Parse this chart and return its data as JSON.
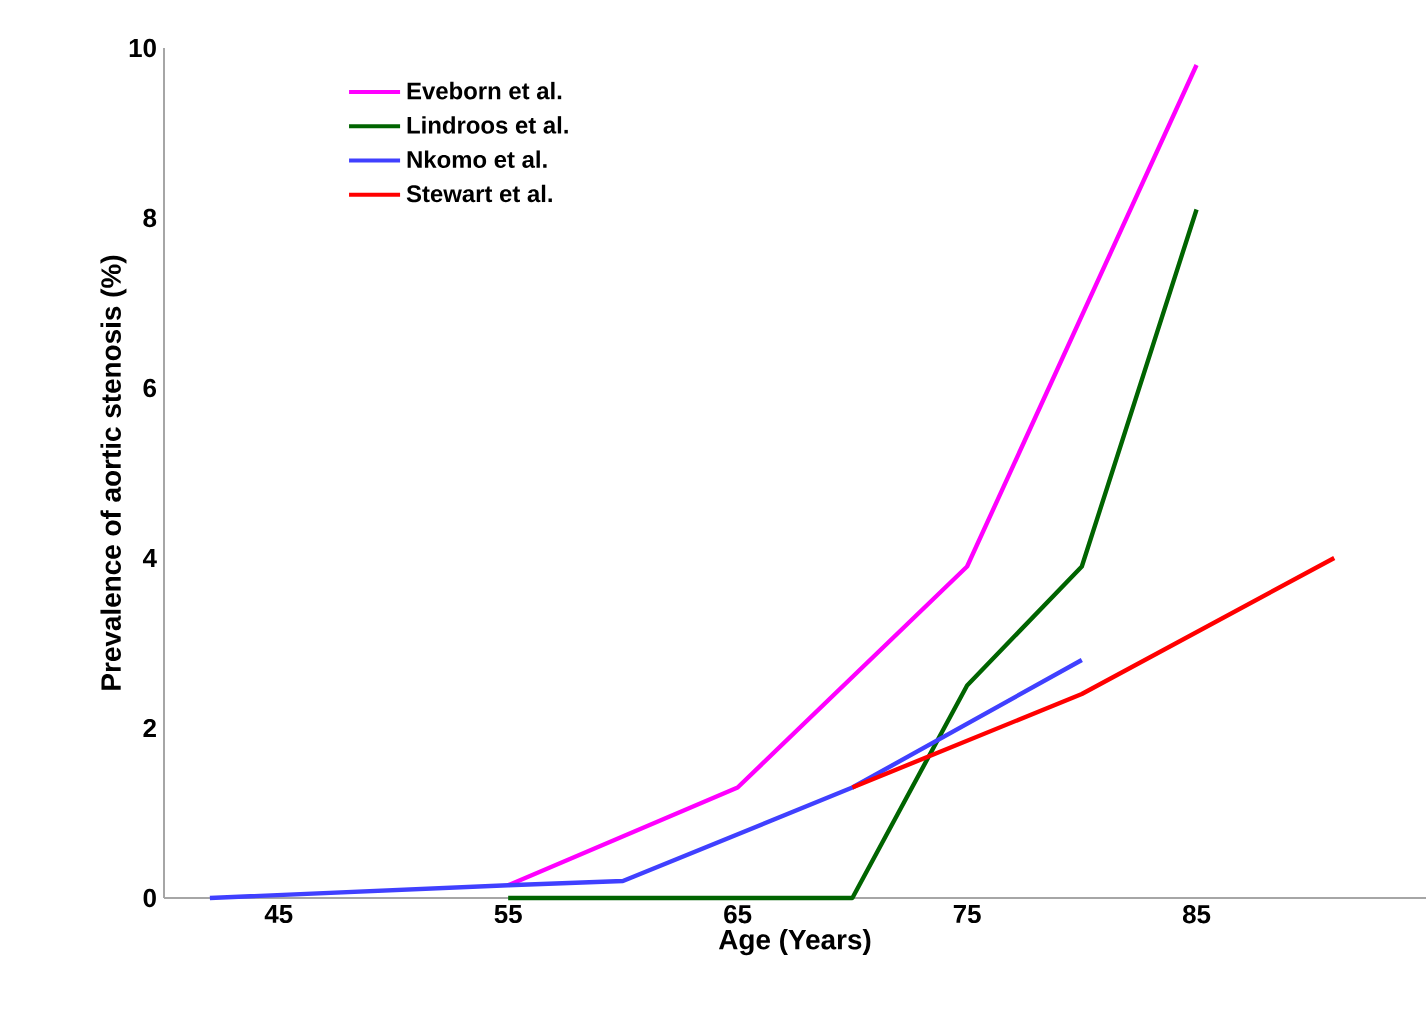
{
  "chart_data": {
    "type": "line",
    "xlabel": "Age (Years)",
    "ylabel": "Prevalence of aortic stenosis (%)",
    "xlim": [
      40,
      95
    ],
    "xticks": [
      45,
      55,
      65,
      75,
      85
    ],
    "ylim": [
      0,
      10
    ],
    "yticks": [
      0,
      2,
      4,
      6,
      8,
      10
    ],
    "grid": false,
    "legend": "top left",
    "marker": "none",
    "line_style": "solid",
    "series": [
      {
        "name": "Eveborn et al.",
        "color": "#ff00ff",
        "x": [
          55,
          65,
          75,
          85
        ],
        "values": [
          0.15,
          1.3,
          3.9,
          9.8
        ]
      },
      {
        "name": "Lindroos et al.",
        "color": "#006400",
        "x": [
          55,
          70,
          75,
          80,
          85
        ],
        "values": [
          0,
          0,
          2.5,
          3.9,
          8.1
        ]
      },
      {
        "name": "Nkomo et al.",
        "color": "#4040ff",
        "x": [
          42,
          55,
          60,
          70,
          80
        ],
        "values": [
          0,
          0.15,
          0.2,
          1.3,
          2.8
        ]
      },
      {
        "name": "Stewart et al.",
        "color": "#ff0000",
        "x": [
          70,
          80,
          91
        ],
        "values": [
          1.3,
          2.4,
          4.0
        ]
      }
    ]
  }
}
